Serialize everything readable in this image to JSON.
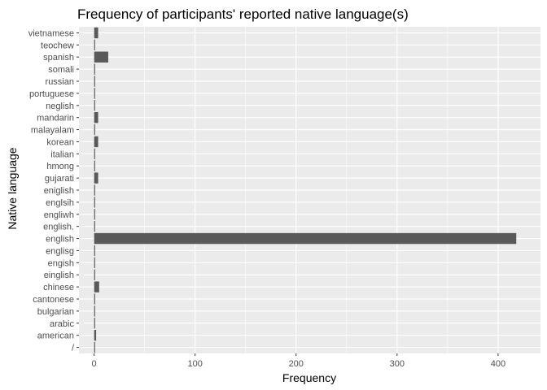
{
  "chart_data": {
    "type": "bar",
    "orientation": "horizontal",
    "title": "Frequency of participants' reported native language(s)",
    "xlabel": "Frequency",
    "ylabel": "Native language",
    "xlim": [
      -15,
      442
    ],
    "xticks": [
      0,
      100,
      200,
      300,
      400
    ],
    "grid": true,
    "legend": "none",
    "colors": {
      "panel": "#ebebeb",
      "grid": "#ffffff",
      "bar": "#595959",
      "tick_text": "#4d4d4d"
    },
    "categories": [
      "/",
      "american",
      "arabic",
      "bulgarian",
      "cantonese",
      "chinese",
      "einglish",
      "engish",
      "englisg",
      "english",
      "english.",
      "engliwh",
      "englsih",
      "eniglish",
      "gujarati",
      "hmong",
      "italian",
      "korean",
      "malayalam",
      "mandarin",
      "neglish",
      "portuguese",
      "russian",
      "somali",
      "spanish",
      "teochew",
      "vietnamese"
    ],
    "values": [
      1,
      2,
      1,
      1,
      1,
      5,
      1,
      1,
      1,
      418,
      1,
      1,
      1,
      1,
      4,
      1,
      1,
      4,
      1,
      4,
      1,
      1,
      1,
      1,
      14,
      1,
      4
    ]
  }
}
